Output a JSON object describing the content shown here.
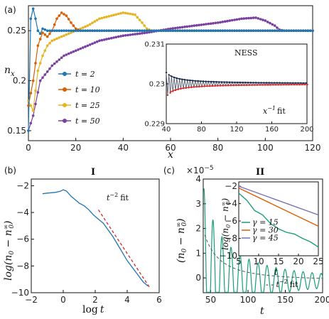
{
  "chart_data": [
    {
      "panel": "(a)",
      "type": "line",
      "ylabel": "n_x",
      "xlabel": "x",
      "xlim": [
        0,
        120
      ],
      "ylim": [
        0.14,
        0.275
      ],
      "xticks": [
        "0",
        "20",
        "40",
        "60",
        "80",
        "100",
        "120"
      ],
      "yticks": [
        "0.15",
        "0.2",
        "0.25"
      ],
      "series": [
        {
          "name": "t = 2",
          "color": "#1f77b4",
          "marker": "o",
          "points": [
            [
              0,
              0.15
            ],
            [
              1,
              0.262
            ],
            [
              2,
              0.272
            ],
            [
              3,
              0.262
            ],
            [
              4,
              0.25
            ],
            [
              5,
              0.247
            ],
            [
              6,
              0.252
            ],
            [
              8,
              0.25
            ],
            [
              10,
              0.25
            ],
            [
              120,
              0.25
            ]
          ]
        },
        {
          "name": "t = 10",
          "color": "#d95f02",
          "marker": "o",
          "points": [
            [
              0,
              0.175
            ],
            [
              2,
              0.2
            ],
            [
              4,
              0.235
            ],
            [
              6,
              0.248
            ],
            [
              8,
              0.244
            ],
            [
              10,
              0.25
            ],
            [
              12,
              0.262
            ],
            [
              14,
              0.268
            ],
            [
              16,
              0.265
            ],
            [
              18,
              0.258
            ],
            [
              20,
              0.252
            ],
            [
              22,
              0.25
            ],
            [
              120,
              0.25
            ]
          ]
        },
        {
          "name": "t = 25",
          "color": "#e6b422",
          "marker": "o",
          "points": [
            [
              0,
              0.18
            ],
            [
              2,
              0.17
            ],
            [
              4,
              0.21
            ],
            [
              6,
              0.225
            ],
            [
              8,
              0.235
            ],
            [
              10,
              0.24
            ],
            [
              15,
              0.245
            ],
            [
              20,
              0.25
            ],
            [
              25,
              0.255
            ],
            [
              30,
              0.262
            ],
            [
              35,
              0.265
            ],
            [
              40,
              0.268
            ],
            [
              45,
              0.266
            ],
            [
              48,
              0.258
            ],
            [
              50,
              0.252
            ],
            [
              52,
              0.25
            ],
            [
              120,
              0.25
            ]
          ]
        },
        {
          "name": "t = 50",
          "color": "#7b3fa0",
          "marker": "o",
          "points": [
            [
              0,
              0.15
            ],
            [
              2,
              0.165
            ],
            [
              5,
              0.2
            ],
            [
              10,
              0.215
            ],
            [
              15,
              0.225
            ],
            [
              20,
              0.23
            ],
            [
              30,
              0.24
            ],
            [
              40,
              0.245
            ],
            [
              50,
              0.248
            ],
            [
              60,
              0.252
            ],
            [
              70,
              0.255
            ],
            [
              80,
              0.258
            ],
            [
              90,
              0.262
            ],
            [
              96,
              0.263
            ],
            [
              100,
              0.26
            ],
            [
              104,
              0.255
            ],
            [
              106,
              0.251
            ],
            [
              108,
              0.25
            ],
            [
              120,
              0.25
            ]
          ]
        }
      ],
      "inset": {
        "title": "NESS",
        "xlim": [
          40,
          200
        ],
        "ylim": [
          0.229,
          0.231
        ],
        "xticks": [
          "40",
          "80",
          "120",
          "160",
          "200"
        ],
        "xtick_values": [
          40,
          80,
          120,
          160,
          200
        ],
        "yticks": [
          "0.229",
          "0.23",
          "0.231"
        ],
        "ytick_values": [
          0.229,
          0.23,
          0.231
        ],
        "annotation": "x^{-1} fit",
        "ness_color": "#4a5568",
        "upper_fit_color": "#1a2a4a",
        "lower_fit_color": "#d62728"
      }
    },
    {
      "panel": "(b)",
      "type": "line",
      "title": "I",
      "xlabel": "log t",
      "ylabel": "log(n_0 − n_0^∞)",
      "xlim": [
        -2,
        6
      ],
      "ylim": [
        -10,
        -1.5
      ],
      "xticks": [
        "−2",
        "0",
        "2",
        "4",
        "6"
      ],
      "xtick_values": [
        -2,
        0,
        2,
        4,
        6
      ],
      "yticks": [
        "−2",
        "−4",
        "−6",
        "−8",
        "−10"
      ],
      "ytick_values": [
        -2,
        -4,
        -6,
        -8,
        -10
      ],
      "annotation": "t^{-2} fit",
      "series": [
        {
          "name": "data",
          "color": "#1f77b4",
          "points": [
            [
              -1.3,
              -2.6
            ],
            [
              -1.0,
              -2.55
            ],
            [
              -0.5,
              -2.5
            ],
            [
              -0.2,
              -2.42
            ],
            [
              0.0,
              -2.3
            ],
            [
              0.2,
              -2.4
            ],
            [
              0.5,
              -2.8
            ],
            [
              0.8,
              -3.1
            ],
            [
              1.0,
              -3.3
            ],
            [
              1.3,
              -3.5
            ],
            [
              1.6,
              -3.8
            ],
            [
              1.9,
              -4.2
            ],
            [
              2.2,
              -4.5
            ],
            [
              2.5,
              -4.8
            ],
            [
              2.8,
              -5.3
            ],
            [
              3.1,
              -5.8
            ],
            [
              3.5,
              -6.6
            ],
            [
              4.0,
              -7.6
            ],
            [
              4.5,
              -8.4
            ],
            [
              5.0,
              -9.2
            ],
            [
              5.3,
              -9.5
            ]
          ]
        },
        {
          "name": "fit",
          "color": "#d62728",
          "dashed": true,
          "points": [
            [
              2.2,
              -3.8
            ],
            [
              5.4,
              -9.6
            ]
          ]
        }
      ]
    },
    {
      "panel": "(c)",
      "type": "line",
      "title": "II",
      "xlabel": "t",
      "ylabel": "(n_0 − n_0^∞)",
      "yscale_label": "×10^{-5}",
      "xlim": [
        40,
        200
      ],
      "ylim": [
        -0.6,
        4
      ],
      "xticks": [
        "50",
        "100",
        "150",
        "200"
      ],
      "xtick_values": [
        50,
        100,
        150,
        200
      ],
      "yticks": [
        "0",
        "1",
        "2",
        "3",
        "4"
      ],
      "ytick_values": [
        0,
        1,
        2,
        3,
        4
      ],
      "annotation": "t^{-2} fit",
      "series_color": "#1a9e77",
      "inset": {
        "xlabel": "t",
        "ylabel": "log(n_0 − n_0^∞)",
        "xlim": [
          5,
          25
        ],
        "ylim": [
          -10,
          -1.5
        ],
        "xticks": [
          "5",
          "10",
          "15",
          "20",
          "25"
        ],
        "xtick_values": [
          5,
          10,
          15,
          20,
          25
        ],
        "yticks": [
          "−2",
          "−4",
          "−6",
          "−8",
          "−10"
        ],
        "ytick_values": [
          -2,
          -4,
          -6,
          -8,
          -10
        ],
        "series": [
          {
            "name": "γ = 15",
            "color": "#1a9e77",
            "points": [
              [
                5,
                -2.8
              ],
              [
                7,
                -3.6
              ],
              [
                9,
                -4.8
              ],
              [
                11,
                -5.3
              ],
              [
                13,
                -6.3
              ],
              [
                15,
                -6.9
              ],
              [
                17,
                -7.3
              ],
              [
                19,
                -7.5
              ],
              [
                21,
                -8.0
              ],
              [
                23,
                -8.4
              ],
              [
                25,
                -9.0
              ]
            ]
          },
          {
            "name": "γ = 30",
            "color": "#d95f02",
            "points": [
              [
                5,
                -2.2
              ],
              [
                25,
                -6.6
              ]
            ]
          },
          {
            "name": "γ = 45",
            "color": "#7570b3",
            "points": [
              [
                5,
                -2.0
              ],
              [
                25,
                -5.3
              ]
            ]
          }
        ]
      }
    }
  ],
  "labels": {
    "a": "(a)",
    "b": "(b)",
    "c": "(c)",
    "ness": "NESS",
    "inset_fit": "x",
    "inset_fit_exp": "−1",
    "inset_fit_tail": "fit",
    "b_title": "I",
    "c_title": "II",
    "b_fit_t": "t",
    "b_fit_exp": "−2",
    "b_fit_tail": "fit",
    "c_fit_t": "t",
    "c_fit_exp": "−2",
    "c_fit_tail": "fit",
    "c_scale": "×10",
    "c_scale_exp": "−5",
    "a_xlabel": "x",
    "a_ylabel_n": "n",
    "a_ylabel_x": "x",
    "b_xlabel_log": "log",
    "b_xlabel_t": "t",
    "c_xlabel": "t",
    "ci_xlabel": "t"
  }
}
